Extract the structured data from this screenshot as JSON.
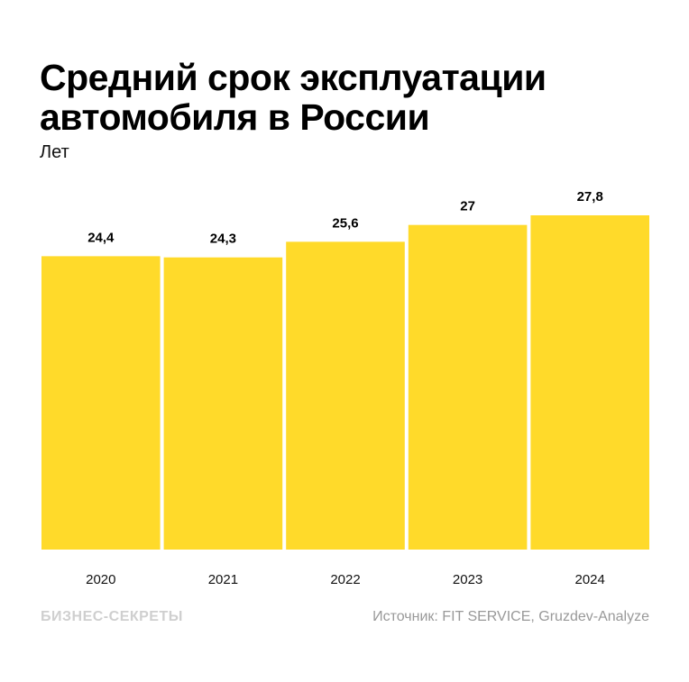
{
  "chart_data": {
    "type": "bar",
    "title_line1": "Средний срок эксплуатации",
    "title_line2": "автомобиля в России",
    "ylabel": "Лет",
    "categories": [
      "2020",
      "2021",
      "2022",
      "2023",
      "2024"
    ],
    "values": [
      24.4,
      24.3,
      25.6,
      27,
      27.8
    ],
    "value_labels": [
      "24,4",
      "24,3",
      "25,6",
      "27",
      "27,8"
    ],
    "ylim": [
      0,
      27.8
    ],
    "grid": false,
    "color": "#FFDA2A"
  },
  "footer": {
    "logo": "БИЗНЕС-СЕКРЕТЫ",
    "source": "Источник: FIT SERVICE, Gruzdev-Analyze"
  }
}
